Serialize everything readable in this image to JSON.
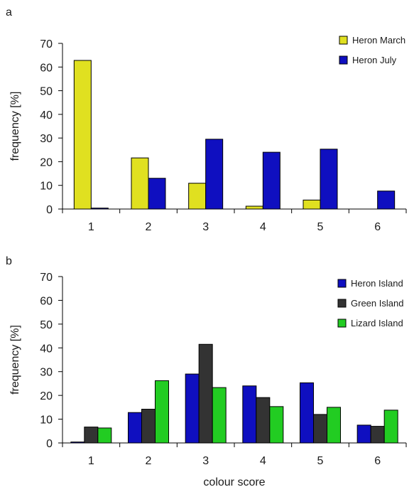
{
  "chart_data": [
    {
      "type": "bar",
      "panel_label": "a",
      "categories": [
        "1",
        "2",
        "3",
        "4",
        "5",
        "6"
      ],
      "series": [
        {
          "name": "Heron March",
          "color": "#e0e020",
          "values": [
            62.8,
            21.6,
            10.9,
            1.2,
            3.8,
            0
          ]
        },
        {
          "name": "Heron July",
          "color": "#0f0fc0",
          "values": [
            0.4,
            13.0,
            29.5,
            24.0,
            25.3,
            7.6
          ]
        }
      ],
      "xlabel": "",
      "ylabel": "frequency [%]",
      "ylim": [
        0,
        70
      ],
      "yticks": [
        0,
        10,
        20,
        30,
        40,
        50,
        60,
        70
      ],
      "grid": false,
      "legend": "top-right"
    },
    {
      "type": "bar",
      "panel_label": "b",
      "categories": [
        "1",
        "2",
        "3",
        "4",
        "5",
        "6"
      ],
      "series": [
        {
          "name": "Heron Island",
          "color": "#0f0fc0",
          "values": [
            0.4,
            12.8,
            29.0,
            24.0,
            25.3,
            7.5
          ]
        },
        {
          "name": "Green Island",
          "color": "#333333",
          "values": [
            6.7,
            14.2,
            41.5,
            19.1,
            12.0,
            7.0
          ]
        },
        {
          "name": "Lizard Island",
          "color": "#22cc22",
          "values": [
            6.3,
            26.2,
            23.3,
            15.3,
            15.0,
            13.8
          ]
        }
      ],
      "xlabel": "colour score",
      "ylabel": "frequency [%]",
      "ylim": [
        0,
        70
      ],
      "yticks": [
        0,
        10,
        20,
        30,
        40,
        50,
        60,
        70
      ],
      "grid": false,
      "legend": "top-right"
    }
  ]
}
